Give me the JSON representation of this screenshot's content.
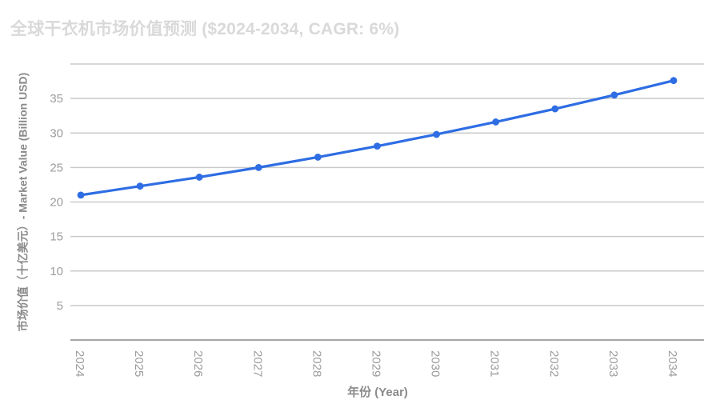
{
  "title": "全球干衣机市场价值预测 ($2024-2034, CAGR: 6%)",
  "x_axis_title": "年份 (Year)",
  "y_axis_title": "市场价值（十亿美元）- Market Value (Billion USD)",
  "colors": {
    "line": "#2e6de3",
    "point": "#2e6de3",
    "grid": "#cbcbcb",
    "axis_line": "#a6a6a6",
    "tick_text": "#9c9c9c",
    "axis_title_text": "#8a8a8a",
    "title_text": "#d9d9d9",
    "background": "#ffffff"
  },
  "chart_data": {
    "type": "line",
    "title": "全球干衣机市场价值预测 ($2024-2034, CAGR: 6%)",
    "x": [
      "2024",
      "2025",
      "2026",
      "2027",
      "2028",
      "2029",
      "2030",
      "2031",
      "2032",
      "2033",
      "2034"
    ],
    "values": [
      21.0,
      22.3,
      23.6,
      25.0,
      26.5,
      28.1,
      29.8,
      31.6,
      33.5,
      35.5,
      37.6
    ],
    "xlabel": "年份 (Year)",
    "ylabel": "市场价值（十亿美元）- Market Value (Billion USD)",
    "ylim": [
      0,
      40
    ],
    "ytick_step": 5,
    "ytick_labeled_range": [
      5,
      35
    ],
    "x_tick_rotation_deg": 90,
    "grid": true,
    "legend": false,
    "point_markers": true
  }
}
